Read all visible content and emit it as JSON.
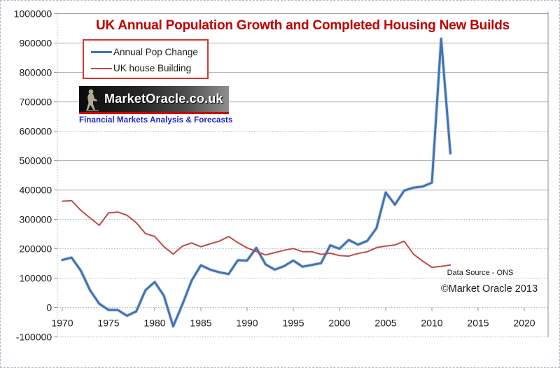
{
  "title": {
    "text": "UK  Annual Population Growth and Completed Housing New Builds",
    "color": "#c00000"
  },
  "legend": {
    "position": "top-left",
    "border_color": "#d8372d",
    "entries": [
      {
        "label": "Annual Pop Change",
        "color": "#4172b4"
      },
      {
        "label": "UK house Building",
        "color": "#bf4b47"
      }
    ]
  },
  "logo": {
    "brand": "MarketOracle.co.uk",
    "tagline": "Financial Markets Analysis & Forecasts",
    "tagline_color": "#2121cc",
    "stripe_color": "#cf0000"
  },
  "annotations": {
    "data_source": "Data Source - ONS",
    "copyright": "©Market Oracle 2013"
  },
  "chart_data": {
    "type": "line",
    "title": "UK  Annual Population Growth and Completed Housing New Builds",
    "xlabel": "",
    "ylabel": "",
    "grid": "horizontal-major",
    "legend_position": "top-left",
    "xlim": [
      1969.4,
      2022.6
    ],
    "ylim": [
      -100000,
      1000000
    ],
    "xticks": [
      1970,
      1975,
      1980,
      1985,
      1990,
      1995,
      2000,
      2005,
      2010,
      2015,
      2020
    ],
    "xtick_labels": [
      "1970",
      "1975",
      "1980",
      "1985",
      "1990",
      "1995",
      "2000",
      "2005",
      "2010",
      "2015",
      "2020"
    ],
    "yticks": [
      1000000,
      900000,
      800000,
      700000,
      600000,
      500000,
      400000,
      300000,
      200000,
      100000,
      0,
      -100000
    ],
    "ytick_labels": [
      "1000000",
      "900000",
      "800000",
      "700000",
      "600000",
      "500000",
      "400000",
      "300000",
      "200000",
      "100000",
      "0",
      "-100000"
    ],
    "dotted_gridlines": [
      600000,
      300000,
      200000,
      100000,
      0,
      -100000
    ],
    "x": [
      1970,
      1971,
      1972,
      1973,
      1974,
      1975,
      1976,
      1977,
      1978,
      1979,
      1980,
      1981,
      1982,
      1983,
      1984,
      1985,
      1986,
      1987,
      1988,
      1989,
      1990,
      1991,
      1992,
      1993,
      1994,
      1995,
      1996,
      1997,
      1998,
      1999,
      2000,
      2001,
      2002,
      2003,
      2004,
      2005,
      2006,
      2007,
      2008,
      2009,
      2010,
      2011,
      2012
    ],
    "series": [
      {
        "name": "Annual Pop Change",
        "color": "#4172b4",
        "stroke_width": 3,
        "values": [
          162000,
          170000,
          126000,
          59000,
          13000,
          -8000,
          -8000,
          -28000,
          -13000,
          59000,
          87000,
          40000,
          -64000,
          11000,
          92000,
          144000,
          129000,
          120000,
          114000,
          161000,
          160000,
          203000,
          147000,
          129000,
          141000,
          160000,
          139000,
          145000,
          151000,
          212000,
          200000,
          230000,
          214000,
          227000,
          270000,
          392000,
          350000,
          398000,
          408000,
          412000,
          425000,
          915000,
          525000
        ]
      },
      {
        "name": "UK house Building",
        "color": "#bf4b47",
        "stroke_width": 2,
        "values": [
          362000,
          364000,
          331000,
          305000,
          280000,
          322000,
          325000,
          314000,
          289000,
          252000,
          242000,
          207000,
          182000,
          209000,
          220000,
          207000,
          217000,
          226000,
          242000,
          221000,
          203000,
          191000,
          179000,
          187000,
          195000,
          201000,
          190000,
          190000,
          181000,
          185000,
          177000,
          175000,
          184000,
          190000,
          204000,
          209000,
          213000,
          226000,
          182000,
          158000,
          137000,
          140000,
          145000
        ]
      }
    ]
  }
}
